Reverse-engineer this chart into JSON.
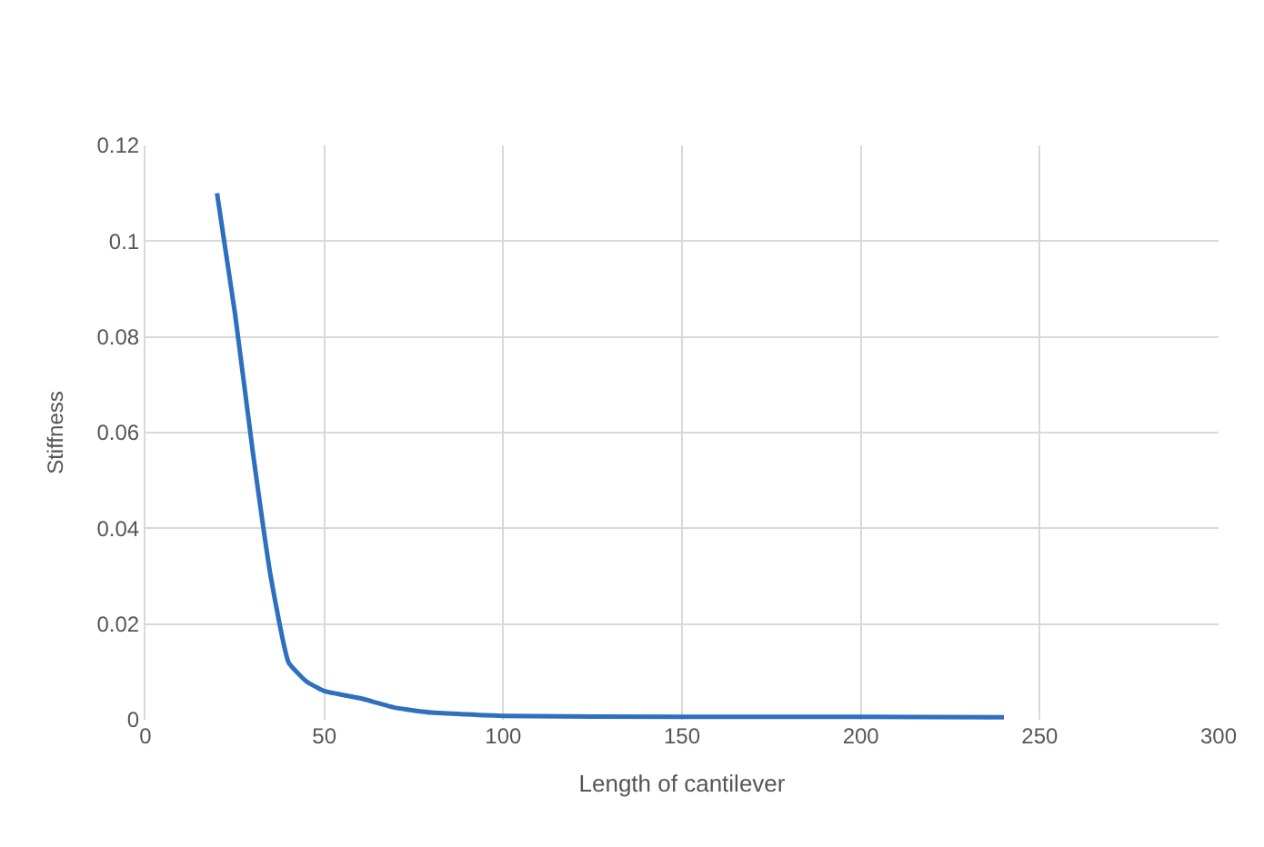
{
  "chart_data": {
    "type": "line",
    "xlabel": "Length of cantilever",
    "ylabel": "Stiffness",
    "x": [
      20,
      25,
      30,
      35,
      40,
      45,
      50,
      60,
      70,
      80,
      100,
      150,
      200,
      240
    ],
    "series": [
      {
        "color": "#2e6fbf",
        "values": [
          0.11,
          0.085,
          0.056,
          0.03,
          0.012,
          0.008,
          0.006,
          0.0045,
          0.0025,
          0.0015,
          0.0008,
          0.0006,
          0.0006,
          0.0005
        ]
      }
    ],
    "xlim": [
      0,
      300
    ],
    "xticks": [
      0,
      50,
      100,
      150,
      200,
      250,
      300
    ],
    "ylim": [
      0,
      0.12
    ],
    "yticks": [
      0,
      0.02,
      0.04,
      0.06,
      0.08,
      0.1,
      0.12
    ],
    "grid": true,
    "marker": "none",
    "line_style": "solid"
  }
}
